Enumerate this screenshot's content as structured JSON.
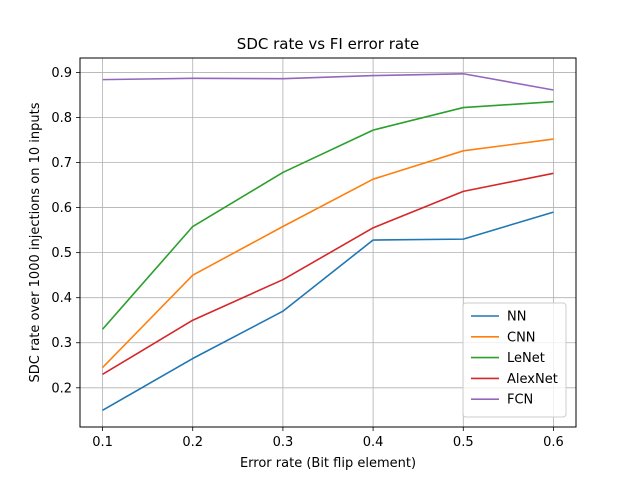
{
  "chart_data": {
    "type": "line",
    "title": "SDC rate vs FI error rate",
    "xlabel": "Error rate (Bit flip element)",
    "ylabel": "SDC rate over 1000 injections on 10 inputs",
    "x": [
      0.1,
      0.2,
      0.3,
      0.4,
      0.5,
      0.6
    ],
    "xticks": [
      "0.1",
      "0.2",
      "0.3",
      "0.4",
      "0.5",
      "0.6"
    ],
    "yticks": [
      "0.2",
      "0.3",
      "0.4",
      "0.5",
      "0.6",
      "0.7",
      "0.8",
      "0.9"
    ],
    "xlim": [
      0.075,
      0.625
    ],
    "ylim": [
      0.113,
      0.932
    ],
    "grid": true,
    "legend_position": "lower-right",
    "series": [
      {
        "name": "NN",
        "color": "#1f77b4",
        "values": [
          0.15,
          0.265,
          0.37,
          0.528,
          0.53,
          0.59
        ]
      },
      {
        "name": "CNN",
        "color": "#ff7f0e",
        "values": [
          0.245,
          0.45,
          0.558,
          0.663,
          0.726,
          0.752
        ]
      },
      {
        "name": "LeNet",
        "color": "#2ca02c",
        "values": [
          0.33,
          0.558,
          0.678,
          0.772,
          0.822,
          0.835
        ]
      },
      {
        "name": "AlexNet",
        "color": "#d62728",
        "values": [
          0.23,
          0.35,
          0.44,
          0.555,
          0.636,
          0.676
        ]
      },
      {
        "name": "FCN",
        "color": "#9467bd",
        "values": [
          0.884,
          0.887,
          0.886,
          0.893,
          0.897,
          0.861
        ]
      }
    ]
  }
}
